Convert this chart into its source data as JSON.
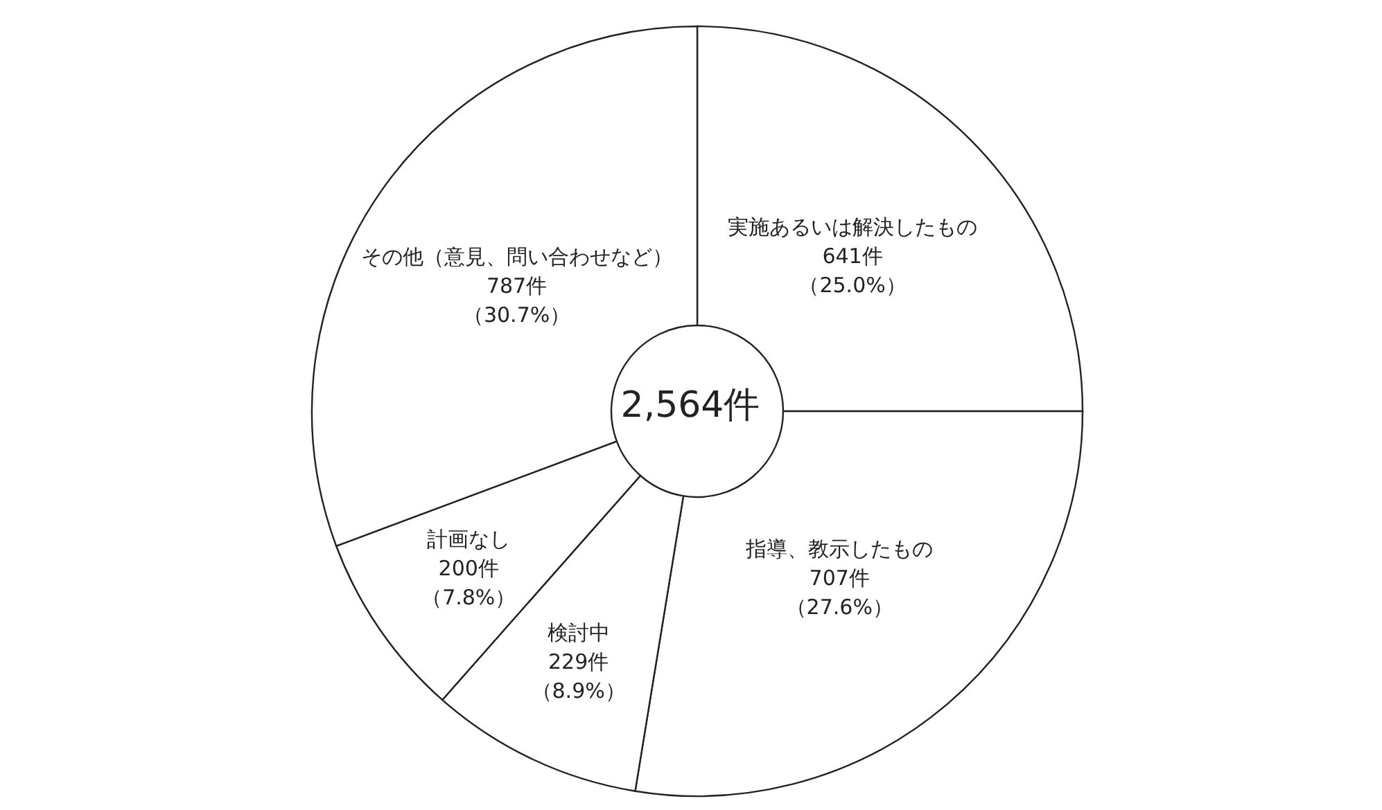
{
  "chart_data": {
    "type": "donut",
    "categories": [
      "実施あるいは解決したもの",
      "指導、教示したもの",
      "検討中",
      "計画なし",
      "その他（意見、問い合わせなど）"
    ],
    "values": [
      641,
      707,
      229,
      200,
      787
    ],
    "value_labels": [
      "641件（25.0%）",
      "707件（27.6%）",
      "229件（8.9%）",
      "200件（7.8%）",
      "787件（30.7%）"
    ],
    "colors": [
      "#ffffff",
      "#ffffff",
      "#ffffff",
      "#ffffff",
      "#ffffff"
    ],
    "annotations": [
      "2,564件"
    ],
    "legend": false
  }
}
